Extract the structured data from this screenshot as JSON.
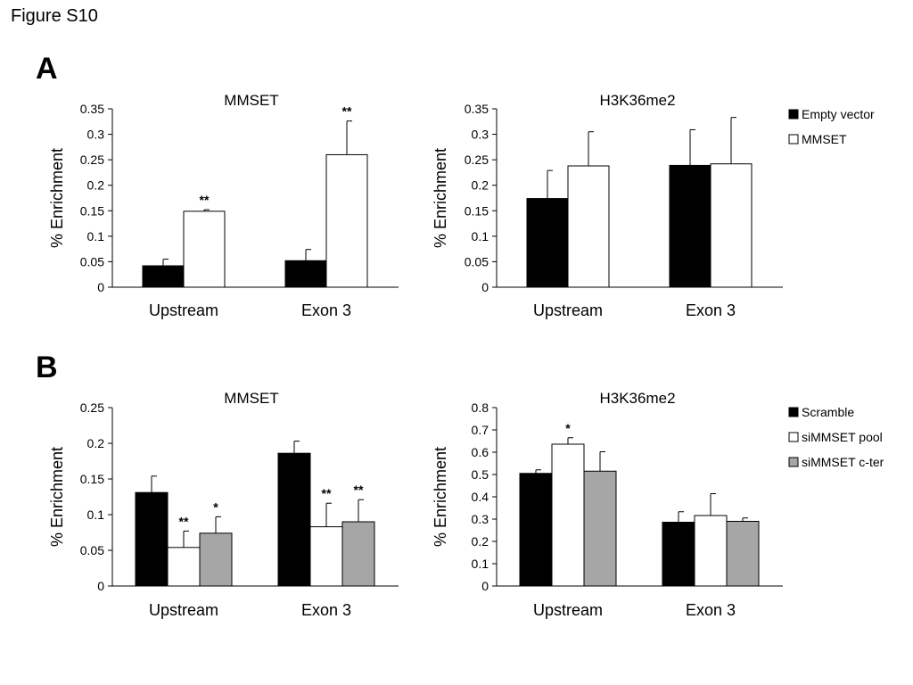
{
  "figure_label": "Figure S10",
  "panels": [
    "A",
    "B"
  ],
  "chart_data": [
    {
      "type": "bar",
      "panel": "A",
      "title": "MMSET",
      "ylabel": "% Enrichment",
      "ylim": [
        0,
        0.35
      ],
      "yticks": [
        "0",
        "0.05",
        "0.1",
        "0.15",
        "0.2",
        "0.25",
        "0.3",
        "0.35"
      ],
      "categories": [
        "Upstream",
        "Exon 3"
      ],
      "series": [
        {
          "name": "Empty vector",
          "color": "#000000",
          "values": [
            0.042,
            0.052
          ],
          "errors": [
            0.013,
            0.022
          ],
          "significance": [
            "",
            ""
          ]
        },
        {
          "name": "MMSET",
          "color": "#ffffff",
          "values": [
            0.149,
            0.26
          ],
          "errors": [
            0.003,
            0.066
          ],
          "significance": [
            "**",
            "**"
          ]
        }
      ]
    },
    {
      "type": "bar",
      "panel": "A",
      "title": "H3K36me2",
      "ylabel": "% Enrichment",
      "ylim": [
        0,
        0.35
      ],
      "yticks": [
        "0",
        "0.05",
        "0.1",
        "0.15",
        "0.2",
        "0.25",
        "0.3",
        "0.35"
      ],
      "categories": [
        "Upstream",
        "Exon 3"
      ],
      "series": [
        {
          "name": "Empty vector",
          "color": "#000000",
          "values": [
            0.174,
            0.239
          ],
          "errors": [
            0.055,
            0.07
          ],
          "significance": [
            "",
            ""
          ]
        },
        {
          "name": "MMSET",
          "color": "#ffffff",
          "values": [
            0.238,
            0.242
          ],
          "errors": [
            0.067,
            0.091
          ],
          "significance": [
            "",
            ""
          ]
        }
      ],
      "legend": [
        "Empty vector",
        "MMSET"
      ],
      "legend_position": "right"
    },
    {
      "type": "bar",
      "panel": "B",
      "title": "MMSET",
      "ylabel": "% Enrichment",
      "ylim": [
        0,
        0.25
      ],
      "yticks": [
        "0",
        "0.05",
        "0.1",
        "0.15",
        "0.2",
        "0.25"
      ],
      "categories": [
        "Upstream",
        "Exon 3"
      ],
      "series": [
        {
          "name": "Scramble",
          "color": "#000000",
          "values": [
            0.131,
            0.186
          ],
          "errors": [
            0.023,
            0.017
          ],
          "significance": [
            "",
            ""
          ]
        },
        {
          "name": "siMMSET pool",
          "color": "#ffffff",
          "values": [
            0.054,
            0.083
          ],
          "errors": [
            0.023,
            0.033
          ],
          "significance": [
            "**",
            "**"
          ]
        },
        {
          "name": "siMMSET c-ter",
          "color": "#a6a6a6",
          "values": [
            0.074,
            0.09
          ],
          "errors": [
            0.023,
            0.031
          ],
          "significance": [
            "*",
            "**"
          ]
        }
      ]
    },
    {
      "type": "bar",
      "panel": "B",
      "title": "H3K36me2",
      "ylabel": "% Enrichment",
      "ylim": [
        0,
        0.8
      ],
      "yticks": [
        "0",
        "0.1",
        "0.2",
        "0.3",
        "0.4",
        "0.5",
        "0.6",
        "0.7",
        "0.8"
      ],
      "categories": [
        "Upstream",
        "Exon 3"
      ],
      "series": [
        {
          "name": "Scramble",
          "color": "#000000",
          "values": [
            0.505,
            0.286
          ],
          "errors": [
            0.016,
            0.047
          ],
          "significance": [
            "",
            ""
          ]
        },
        {
          "name": "siMMSET pool",
          "color": "#ffffff",
          "values": [
            0.636,
            0.316
          ],
          "errors": [
            0.029,
            0.098
          ],
          "significance": [
            "*",
            ""
          ]
        },
        {
          "name": "siMMSET c-ter",
          "color": "#a6a6a6",
          "values": [
            0.515,
            0.29
          ],
          "errors": [
            0.087,
            0.015
          ],
          "significance": [
            "",
            ""
          ]
        }
      ],
      "legend": [
        "Scramble",
        "siMMSET pool",
        "siMMSET c-ter"
      ],
      "legend_position": "right"
    }
  ]
}
